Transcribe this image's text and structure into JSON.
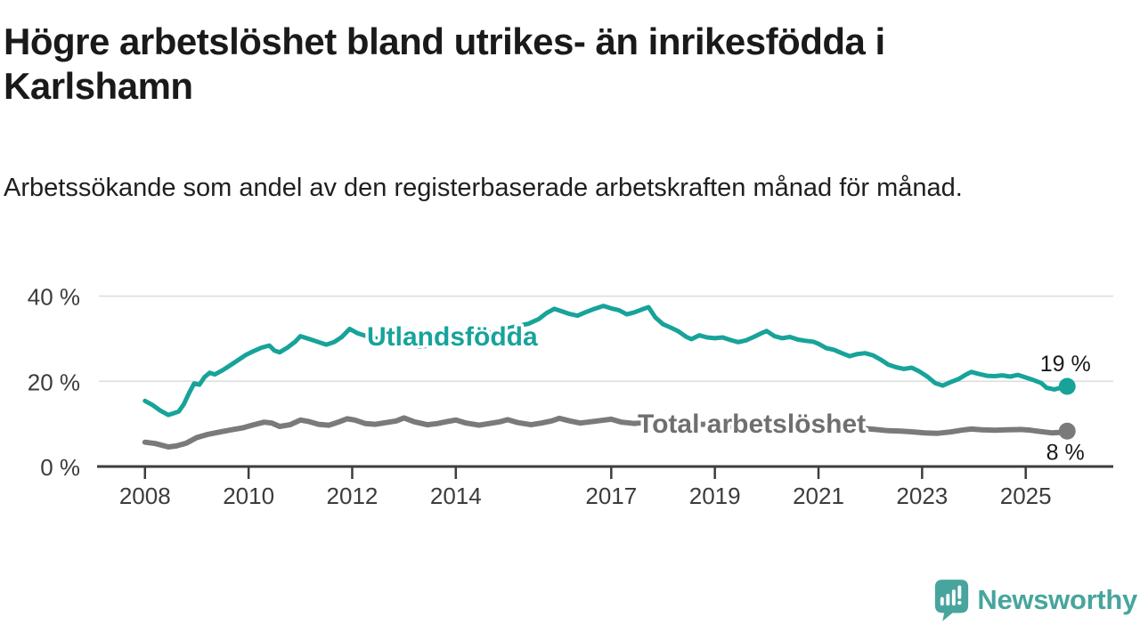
{
  "header": {
    "title": "Högre arbetslöshet bland utrikes- än inrikesfödda i Karlshamn",
    "subtitle": "Arbetssökande som andel av den registerbaserade arbetskraften månad för månad."
  },
  "branding": {
    "logo_text": "Newsworthy",
    "logo_color": "#47a59d"
  },
  "colors": {
    "title_text": "#1a1a1a",
    "axis_text": "#3c3c3c",
    "axis_line": "#3d3d3d",
    "gridline": "#dcdcdc",
    "annotation_text": "#1a1a1a",
    "series_utlandsfodda": "#17a39a",
    "series_total": "#7a7a7a",
    "series_total_label": "#6f6f6f"
  },
  "chart_data": {
    "type": "line",
    "x_range": [
      2007.11,
      2026.69
    ],
    "y_range": [
      0,
      42
    ],
    "grid": "horizontal-only",
    "legend_position": "inline-labels",
    "x_ticks": [
      {
        "value": 2008,
        "label": "2008"
      },
      {
        "value": 2010,
        "label": "2010"
      },
      {
        "value": 2012,
        "label": "2012"
      },
      {
        "value": 2014,
        "label": "2014"
      },
      {
        "value": 2017,
        "label": "2017"
      },
      {
        "value": 2019,
        "label": "2019"
      },
      {
        "value": 2021,
        "label": "2021"
      },
      {
        "value": 2023,
        "label": "2023"
      },
      {
        "value": 2025,
        "label": "2025"
      }
    ],
    "y_ticks": [
      {
        "value": 0,
        "label": "0 %"
      },
      {
        "value": 20,
        "label": "20 %"
      },
      {
        "value": 40,
        "label": "40 %"
      }
    ],
    "series": [
      {
        "name": "Utlandsfödda",
        "color": "#17a39a",
        "label_color": "#17a39a",
        "end_label": "19 %",
        "points": [
          [
            2008.0,
            15.4
          ],
          [
            2008.15,
            14.4
          ],
          [
            2008.3,
            13.1
          ],
          [
            2008.45,
            12.1
          ],
          [
            2008.55,
            12.5
          ],
          [
            2008.65,
            12.9
          ],
          [
            2008.75,
            14.6
          ],
          [
            2008.85,
            17.2
          ],
          [
            2008.95,
            19.5
          ],
          [
            2009.05,
            19.2
          ],
          [
            2009.15,
            21.0
          ],
          [
            2009.25,
            22.0
          ],
          [
            2009.35,
            21.6
          ],
          [
            2009.5,
            22.6
          ],
          [
            2009.65,
            23.8
          ],
          [
            2009.8,
            25.0
          ],
          [
            2009.95,
            26.2
          ],
          [
            2010.1,
            27.1
          ],
          [
            2010.25,
            27.9
          ],
          [
            2010.4,
            28.4
          ],
          [
            2010.5,
            27.2
          ],
          [
            2010.6,
            26.8
          ],
          [
            2010.75,
            27.9
          ],
          [
            2010.9,
            29.3
          ],
          [
            2011.0,
            30.6
          ],
          [
            2011.15,
            30.0
          ],
          [
            2011.3,
            29.4
          ],
          [
            2011.5,
            28.6
          ],
          [
            2011.65,
            29.2
          ],
          [
            2011.8,
            30.4
          ],
          [
            2011.95,
            32.3
          ],
          [
            2012.1,
            31.3
          ],
          [
            2012.3,
            30.5
          ],
          [
            2012.55,
            29.8
          ],
          [
            2012.8,
            29.3
          ],
          [
            2013.05,
            28.6
          ],
          [
            2013.3,
            28.1
          ],
          [
            2013.55,
            28.5
          ],
          [
            2013.8,
            29.2
          ],
          [
            2014.0,
            29.8
          ],
          [
            2014.25,
            30.3
          ],
          [
            2014.5,
            30.9
          ],
          [
            2014.75,
            31.6
          ],
          [
            2015.0,
            32.4
          ],
          [
            2015.2,
            33.0
          ],
          [
            2015.4,
            33.5
          ],
          [
            2015.6,
            34.6
          ],
          [
            2015.75,
            36.0
          ],
          [
            2015.9,
            37.0
          ],
          [
            2016.05,
            36.4
          ],
          [
            2016.2,
            35.8
          ],
          [
            2016.35,
            35.4
          ],
          [
            2016.5,
            36.2
          ],
          [
            2016.65,
            36.9
          ],
          [
            2016.85,
            37.7
          ],
          [
            2017.0,
            37.1
          ],
          [
            2017.15,
            36.7
          ],
          [
            2017.3,
            35.7
          ],
          [
            2017.45,
            36.2
          ],
          [
            2017.6,
            36.9
          ],
          [
            2017.72,
            37.4
          ],
          [
            2017.85,
            35.0
          ],
          [
            2018.0,
            33.4
          ],
          [
            2018.15,
            32.6
          ],
          [
            2018.3,
            31.7
          ],
          [
            2018.45,
            30.4
          ],
          [
            2018.55,
            29.9
          ],
          [
            2018.7,
            30.8
          ],
          [
            2018.85,
            30.3
          ],
          [
            2019.0,
            30.1
          ],
          [
            2019.15,
            30.3
          ],
          [
            2019.3,
            29.7
          ],
          [
            2019.45,
            29.2
          ],
          [
            2019.6,
            29.6
          ],
          [
            2019.75,
            30.4
          ],
          [
            2019.9,
            31.3
          ],
          [
            2020.0,
            31.8
          ],
          [
            2020.15,
            30.6
          ],
          [
            2020.3,
            30.1
          ],
          [
            2020.45,
            30.4
          ],
          [
            2020.6,
            29.8
          ],
          [
            2020.75,
            29.5
          ],
          [
            2020.9,
            29.3
          ],
          [
            2021.0,
            28.8
          ],
          [
            2021.15,
            27.8
          ],
          [
            2021.3,
            27.4
          ],
          [
            2021.45,
            26.6
          ],
          [
            2021.6,
            25.9
          ],
          [
            2021.75,
            26.4
          ],
          [
            2021.9,
            26.6
          ],
          [
            2022.05,
            26.1
          ],
          [
            2022.2,
            25.1
          ],
          [
            2022.35,
            23.9
          ],
          [
            2022.5,
            23.3
          ],
          [
            2022.65,
            22.9
          ],
          [
            2022.8,
            23.2
          ],
          [
            2022.95,
            22.3
          ],
          [
            2023.1,
            21.1
          ],
          [
            2023.25,
            19.6
          ],
          [
            2023.4,
            19.0
          ],
          [
            2023.55,
            19.8
          ],
          [
            2023.7,
            20.5
          ],
          [
            2023.85,
            21.6
          ],
          [
            2023.95,
            22.2
          ],
          [
            2024.1,
            21.7
          ],
          [
            2024.25,
            21.3
          ],
          [
            2024.4,
            21.2
          ],
          [
            2024.55,
            21.4
          ],
          [
            2024.7,
            21.1
          ],
          [
            2024.85,
            21.5
          ],
          [
            2025.0,
            20.9
          ],
          [
            2025.15,
            20.3
          ],
          [
            2025.3,
            19.6
          ],
          [
            2025.4,
            18.5
          ],
          [
            2025.55,
            18.1
          ],
          [
            2025.65,
            18.4
          ],
          [
            2025.8,
            18.8
          ]
        ]
      },
      {
        "name": "Total arbetslöshet",
        "color": "#7a7a7a",
        "label_color": "#6f6f6f",
        "end_label": "8 %",
        "points": [
          [
            2008.0,
            5.7
          ],
          [
            2008.2,
            5.4
          ],
          [
            2008.45,
            4.6
          ],
          [
            2008.6,
            4.8
          ],
          [
            2008.8,
            5.5
          ],
          [
            2009.0,
            6.8
          ],
          [
            2009.2,
            7.5
          ],
          [
            2009.45,
            8.1
          ],
          [
            2009.7,
            8.7
          ],
          [
            2009.9,
            9.1
          ],
          [
            2010.1,
            9.8
          ],
          [
            2010.3,
            10.4
          ],
          [
            2010.45,
            10.2
          ],
          [
            2010.6,
            9.4
          ],
          [
            2010.8,
            9.8
          ],
          [
            2011.0,
            10.9
          ],
          [
            2011.15,
            10.6
          ],
          [
            2011.35,
            9.9
          ],
          [
            2011.55,
            9.7
          ],
          [
            2011.75,
            10.5
          ],
          [
            2011.9,
            11.2
          ],
          [
            2012.05,
            10.9
          ],
          [
            2012.25,
            10.1
          ],
          [
            2012.45,
            9.9
          ],
          [
            2012.65,
            10.3
          ],
          [
            2012.85,
            10.7
          ],
          [
            2013.0,
            11.4
          ],
          [
            2013.2,
            10.5
          ],
          [
            2013.45,
            9.8
          ],
          [
            2013.65,
            10.1
          ],
          [
            2013.85,
            10.6
          ],
          [
            2014.0,
            10.9
          ],
          [
            2014.2,
            10.2
          ],
          [
            2014.45,
            9.7
          ],
          [
            2014.65,
            10.1
          ],
          [
            2014.85,
            10.5
          ],
          [
            2015.0,
            11.0
          ],
          [
            2015.2,
            10.3
          ],
          [
            2015.45,
            9.8
          ],
          [
            2015.65,
            10.2
          ],
          [
            2015.85,
            10.7
          ],
          [
            2016.0,
            11.3
          ],
          [
            2016.2,
            10.7
          ],
          [
            2016.4,
            10.2
          ],
          [
            2016.6,
            10.5
          ],
          [
            2016.8,
            10.8
          ],
          [
            2017.0,
            11.1
          ],
          [
            2017.2,
            10.4
          ],
          [
            2017.45,
            10.1
          ],
          [
            2017.6,
            10.3
          ],
          [
            2017.9,
            10.6
          ],
          [
            2018.1,
            10.3
          ],
          [
            2018.4,
            9.7
          ],
          [
            2018.7,
            9.9
          ],
          [
            2019.0,
            9.9
          ],
          [
            2019.3,
            9.4
          ],
          [
            2019.6,
            9.5
          ],
          [
            2019.9,
            10.1
          ],
          [
            2020.2,
            10.4
          ],
          [
            2020.5,
            10.7
          ],
          [
            2020.8,
            10.4
          ],
          [
            2021.0,
            10.1
          ],
          [
            2021.3,
            9.5
          ],
          [
            2021.6,
            9.2
          ],
          [
            2021.9,
            8.9
          ],
          [
            2022.1,
            8.7
          ],
          [
            2022.35,
            8.4
          ],
          [
            2022.6,
            8.3
          ],
          [
            2022.85,
            8.1
          ],
          [
            2023.05,
            7.9
          ],
          [
            2023.3,
            7.8
          ],
          [
            2023.55,
            8.1
          ],
          [
            2023.75,
            8.5
          ],
          [
            2023.95,
            8.8
          ],
          [
            2024.15,
            8.6
          ],
          [
            2024.4,
            8.5
          ],
          [
            2024.65,
            8.6
          ],
          [
            2024.9,
            8.7
          ],
          [
            2025.1,
            8.5
          ],
          [
            2025.3,
            8.2
          ],
          [
            2025.5,
            7.9
          ],
          [
            2025.65,
            8.0
          ],
          [
            2025.8,
            8.3
          ]
        ]
      }
    ]
  }
}
